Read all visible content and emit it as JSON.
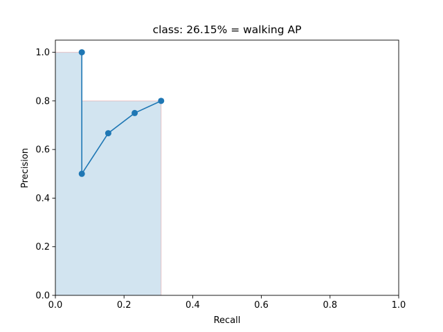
{
  "chart_data": {
    "type": "line",
    "title": "class: 26.15% = walking AP",
    "xlabel": "Recall",
    "ylabel": "Precision",
    "xlim": [
      0.0,
      1.0
    ],
    "ylim": [
      0.0,
      1.05
    ],
    "x_ticks": [
      "0.0",
      "0.2",
      "0.4",
      "0.6",
      "0.8",
      "1.0"
    ],
    "y_ticks": [
      "0.0",
      "0.2",
      "0.4",
      "0.6",
      "0.8",
      "1.0"
    ],
    "grid": false,
    "series": [
      {
        "type": "line",
        "marker": "circle",
        "color": "#1f77b4",
        "x": [
          0.077,
          0.077,
          0.154,
          0.231,
          0.308
        ],
        "y": [
          1.0,
          0.5,
          0.667,
          0.75,
          0.8
        ]
      }
    ],
    "area": {
      "type": "step-area",
      "fill_color": "#1f77b4",
      "fill_opacity": 0.2,
      "edge_color": "#e06666",
      "x": [
        0.0,
        0.077,
        0.077,
        0.308,
        0.308
      ],
      "y": [
        1.0,
        1.0,
        0.8,
        0.8,
        0.0
      ]
    }
  }
}
